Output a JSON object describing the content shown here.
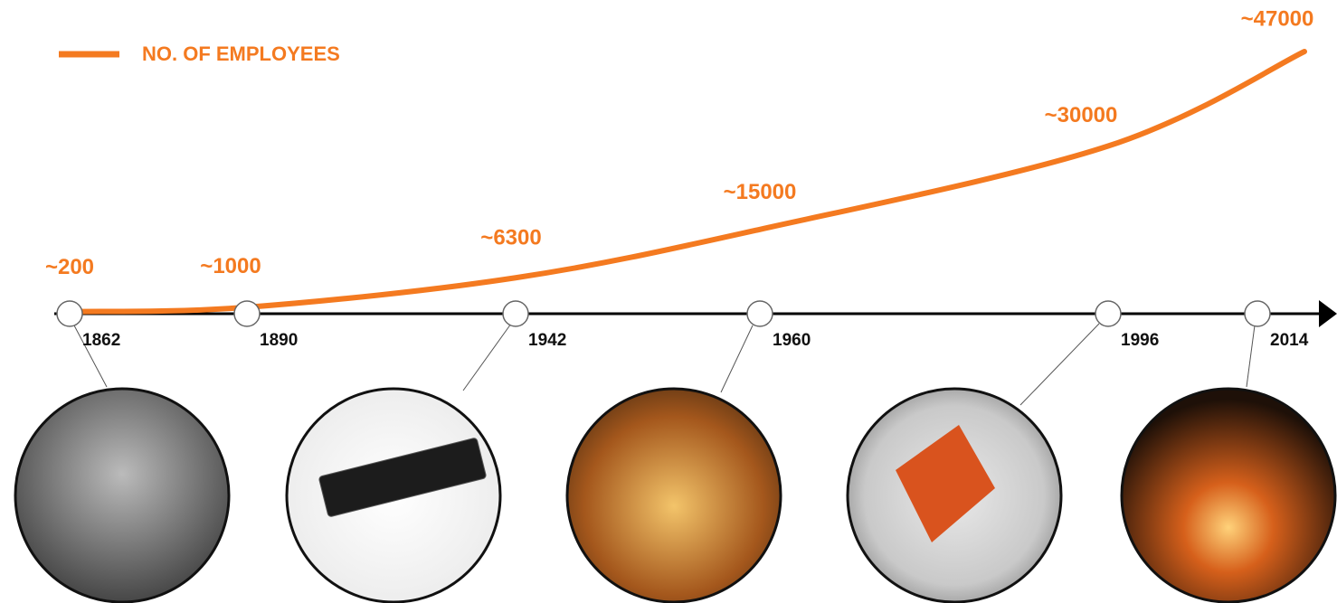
{
  "chart_data": {
    "type": "line",
    "categories": [
      "1862",
      "1890",
      "1942",
      "1960",
      "1996",
      "2014"
    ],
    "series": [
      {
        "name": "NO. OF EMPLOYEES",
        "color": "#f47a20",
        "values": [
          200,
          1000,
          6300,
          15000,
          30000,
          47000
        ],
        "value_labels": [
          "~200",
          "~1000",
          "~6300",
          "~15000",
          "~30000",
          "~47000"
        ]
      }
    ]
  }
}
